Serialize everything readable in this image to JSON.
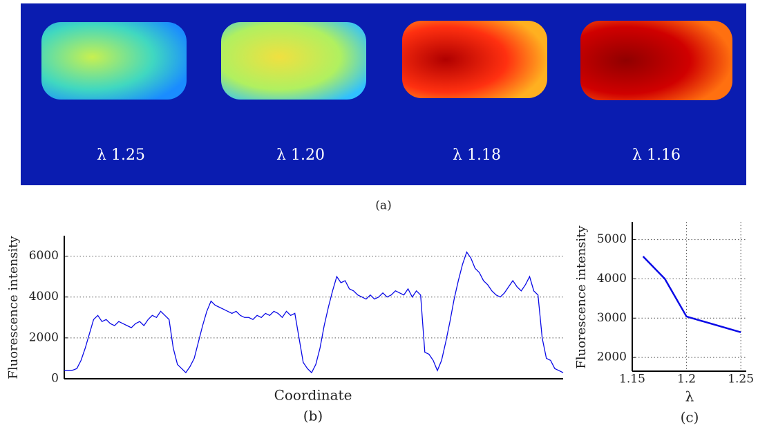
{
  "images": {
    "labels": [
      "λ 1.25",
      "λ 1.20",
      "λ 1.18",
      "λ 1.16"
    ],
    "caption": "(a)"
  },
  "chart_data": [
    {
      "type": "line",
      "caption": "(b)",
      "xlabel": "Coordinate",
      "ylabel": "Fluorescence intensity",
      "ylim": [
        0,
        7000
      ],
      "yticks": [
        0,
        2000,
        4000,
        6000
      ],
      "grid": true,
      "color": "#0a0ae6",
      "values": [
        400,
        400,
        420,
        500,
        900,
        1500,
        2200,
        2900,
        3100,
        2800,
        2900,
        2700,
        2600,
        2800,
        2700,
        2600,
        2500,
        2700,
        2800,
        2600,
        2900,
        3100,
        3000,
        3300,
        3100,
        2900,
        1500,
        700,
        500,
        300,
        600,
        1000,
        1800,
        2600,
        3300,
        3800,
        3600,
        3500,
        3400,
        3300,
        3200,
        3300,
        3100,
        3000,
        3000,
        2900,
        3100,
        3000,
        3200,
        3100,
        3300,
        3200,
        3000,
        3300,
        3100,
        3200,
        2000,
        800,
        500,
        300,
        700,
        1500,
        2600,
        3500,
        4300,
        5000,
        4700,
        4800,
        4400,
        4300,
        4100,
        4000,
        3900,
        4100,
        3900,
        4000,
        4200,
        4000,
        4100,
        4300,
        4200,
        4100,
        4400,
        4000,
        4300,
        4100,
        1300,
        1200,
        900,
        400,
        900,
        1800,
        2800,
        3900,
        4800,
        5600,
        6200,
        5900,
        5400,
        5200,
        4800,
        4600,
        4300,
        4100,
        4000,
        4200,
        4500,
        4800,
        4500,
        4300,
        4600,
        5000,
        4300,
        4100,
        2000,
        1000,
        900,
        500,
        400,
        300
      ]
    },
    {
      "type": "line",
      "caption": "(c)",
      "xlabel": "λ",
      "ylabel": "Fluorescence intensity",
      "x": [
        1.16,
        1.18,
        1.2,
        1.25
      ],
      "values": [
        4570,
        4000,
        3040,
        2640
      ],
      "xlim": [
        1.15,
        1.255
      ],
      "ylim": [
        1650,
        5450
      ],
      "xticks": [
        1.15,
        1.2,
        1.25
      ],
      "yticks": [
        2000,
        3000,
        4000,
        5000
      ],
      "grid": true,
      "color": "#0a0ae6"
    }
  ]
}
